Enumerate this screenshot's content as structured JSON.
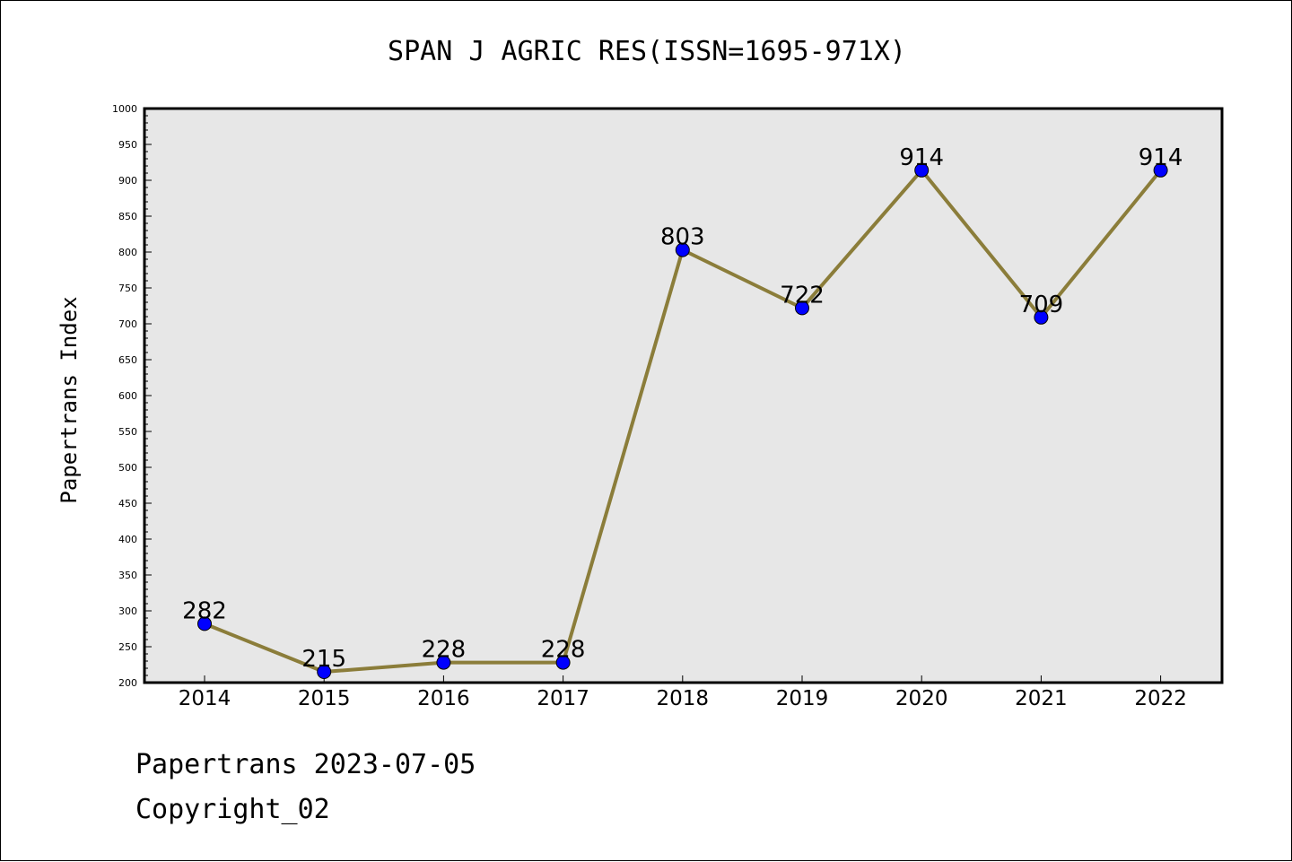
{
  "chart_data": {
    "type": "line",
    "title": "SPAN J AGRIC RES(ISSN=1695-971X)",
    "xlabel": "",
    "ylabel": "Papertrans Index",
    "categories": [
      "2014",
      "2015",
      "2016",
      "2017",
      "2018",
      "2019",
      "2020",
      "2021",
      "2022"
    ],
    "series": [
      {
        "values": [
          282,
          215,
          228,
          228,
          803,
          722,
          914,
          709,
          914
        ]
      }
    ],
    "data_labels": [
      "282",
      "215",
      "228",
      "228",
      "803",
      "722",
      "914",
      "709",
      "914"
    ],
    "ylim": [
      200,
      1000
    ],
    "yticks": [
      200,
      250,
      300,
      350,
      400,
      450,
      500,
      550,
      600,
      650,
      700,
      750,
      800,
      850,
      900,
      950,
      1000
    ],
    "grid": false,
    "legend": "none",
    "colors": {
      "line": "#8b7d3a",
      "marker": "#0000ff",
      "plot_background": "#e7e7e7",
      "axis": "#000000"
    }
  },
  "footer": {
    "date_line": "Papertrans 2023-07-05",
    "copyright_line": "Copyright_02"
  }
}
